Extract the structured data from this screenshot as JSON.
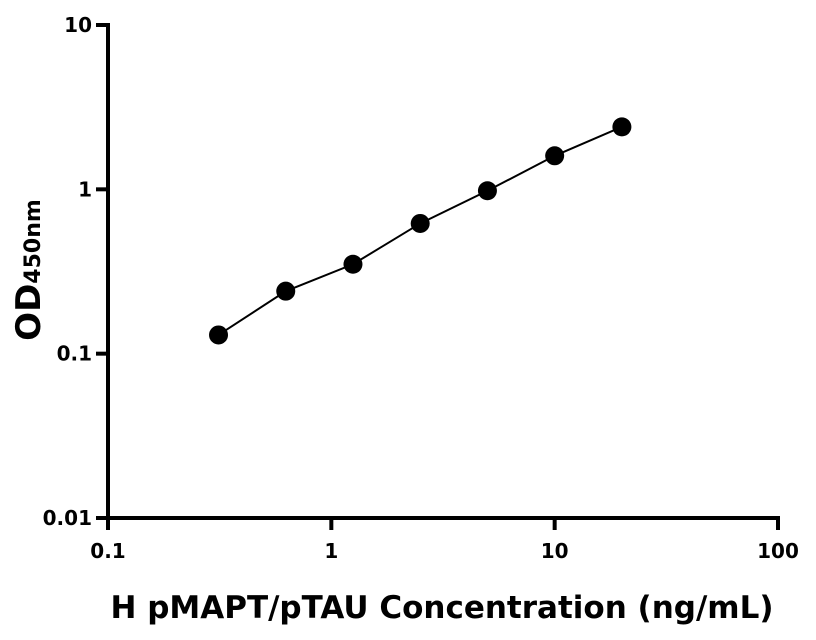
{
  "chart_data": {
    "type": "scatter",
    "xlabel": "H pMAPT/pTAU Concentration (ng/mL)",
    "ylabel_main": "OD",
    "ylabel_sub": "450nm",
    "x_scale": "log",
    "y_scale": "log",
    "xlim": [
      0.1,
      100
    ],
    "ylim": [
      0.01,
      10
    ],
    "x_ticks": [
      0.1,
      1,
      10,
      100
    ],
    "x_tick_labels": [
      "0.1",
      "1",
      "10",
      "100"
    ],
    "y_ticks": [
      0.01,
      0.1,
      1,
      10
    ],
    "y_tick_labels": [
      "0.01",
      "0.1",
      "1",
      "10"
    ],
    "grid": false,
    "fit_line": true,
    "series": [
      {
        "x": [
          0.3125,
          0.625,
          1.25,
          2.5,
          5,
          10,
          20
        ],
        "y": [
          0.13,
          0.24,
          0.35,
          0.62,
          0.98,
          1.6,
          2.4
        ]
      }
    ],
    "colors": {
      "marker": "#000000",
      "line": "#000000",
      "axis": "#000000"
    }
  }
}
